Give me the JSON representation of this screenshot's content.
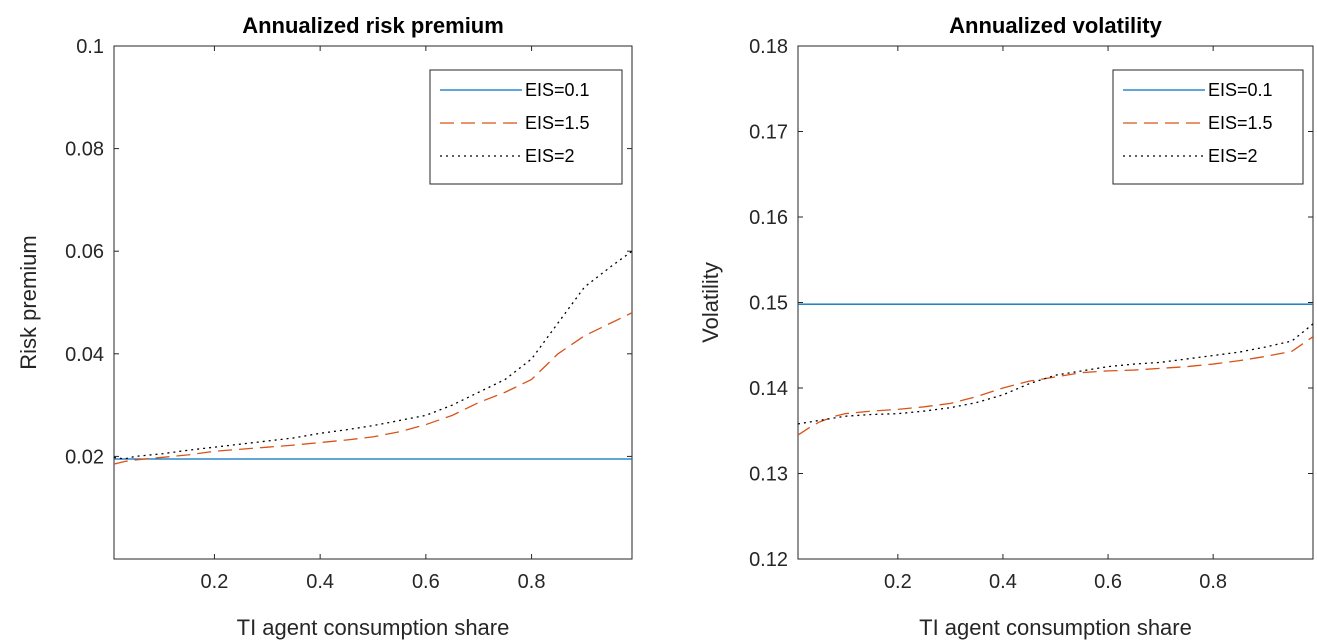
{
  "chart_data": [
    {
      "type": "line",
      "title": "Annualized risk premium",
      "xlabel": "TI agent consumption share",
      "ylabel": "Risk premium",
      "xlim": [
        0.01,
        0.99
      ],
      "ylim": [
        0,
        0.1
      ],
      "xticks": [
        0.2,
        0.4,
        0.6,
        0.8
      ],
      "xtick_labels": [
        "0.2",
        "0.4",
        "0.6",
        "0.8"
      ],
      "yticks": [
        0.02,
        0.04,
        0.06,
        0.08,
        0.1
      ],
      "ytick_labels": [
        "0.02",
        "0.04",
        "0.06",
        "0.08",
        "0.1"
      ],
      "legend_position": "top-right",
      "grid": false,
      "series": [
        {
          "name": "EIS=0.1",
          "color": "#0072BD",
          "style": "solid",
          "x": [
            0.01,
            0.1,
            0.2,
            0.3,
            0.4,
            0.5,
            0.6,
            0.7,
            0.8,
            0.9,
            0.99
          ],
          "y": [
            0.0195,
            0.0195,
            0.0195,
            0.0195,
            0.0195,
            0.0195,
            0.0195,
            0.0195,
            0.0195,
            0.0195,
            0.0195
          ]
        },
        {
          "name": "EIS=1.5",
          "color": "#D95319",
          "style": "dashed",
          "x": [
            0.01,
            0.03,
            0.05,
            0.1,
            0.15,
            0.2,
            0.25,
            0.3,
            0.35,
            0.4,
            0.45,
            0.5,
            0.55,
            0.6,
            0.65,
            0.7,
            0.75,
            0.8,
            0.85,
            0.9,
            0.95,
            0.99
          ],
          "y": [
            0.0185,
            0.019,
            0.0193,
            0.0198,
            0.0203,
            0.021,
            0.0214,
            0.0218,
            0.0222,
            0.0227,
            0.0232,
            0.0238,
            0.0248,
            0.0262,
            0.028,
            0.0305,
            0.0325,
            0.035,
            0.04,
            0.0435,
            0.046,
            0.048
          ]
        },
        {
          "name": "EIS=2",
          "color": "#000000",
          "style": "dotted",
          "x": [
            0.01,
            0.03,
            0.05,
            0.1,
            0.15,
            0.2,
            0.25,
            0.3,
            0.35,
            0.4,
            0.45,
            0.5,
            0.55,
            0.6,
            0.65,
            0.7,
            0.75,
            0.8,
            0.85,
            0.9,
            0.95,
            0.99
          ],
          "y": [
            0.0198,
            0.0195,
            0.02,
            0.0205,
            0.0212,
            0.0218,
            0.0224,
            0.023,
            0.0236,
            0.0245,
            0.0252,
            0.026,
            0.027,
            0.028,
            0.03,
            0.0325,
            0.035,
            0.039,
            0.046,
            0.053,
            0.057,
            0.06
          ]
        }
      ]
    },
    {
      "type": "line",
      "title": "Annualized volatility",
      "xlabel": "TI agent consumption share",
      "ylabel": "Volatility",
      "xlim": [
        0.01,
        0.99
      ],
      "ylim": [
        0.12,
        0.18
      ],
      "xticks": [
        0.2,
        0.4,
        0.6,
        0.8
      ],
      "xtick_labels": [
        "0.2",
        "0.4",
        "0.6",
        "0.8"
      ],
      "yticks": [
        0.12,
        0.13,
        0.14,
        0.15,
        0.16,
        0.17,
        0.18
      ],
      "ytick_labels": [
        "0.12",
        "0.13",
        "0.14",
        "0.15",
        "0.16",
        "0.17",
        "0.18"
      ],
      "legend_position": "top-right",
      "grid": false,
      "series": [
        {
          "name": "EIS=0.1",
          "color": "#0072BD",
          "style": "solid",
          "x": [
            0.01,
            0.1,
            0.2,
            0.3,
            0.4,
            0.5,
            0.6,
            0.7,
            0.8,
            0.9,
            0.99
          ],
          "y": [
            0.1498,
            0.1498,
            0.1498,
            0.1498,
            0.1498,
            0.1498,
            0.1498,
            0.1498,
            0.1498,
            0.1498,
            0.1498
          ]
        },
        {
          "name": "EIS=1.5",
          "color": "#D95319",
          "style": "dashed",
          "x": [
            0.01,
            0.03,
            0.05,
            0.08,
            0.1,
            0.15,
            0.2,
            0.25,
            0.3,
            0.35,
            0.4,
            0.45,
            0.5,
            0.55,
            0.6,
            0.65,
            0.7,
            0.75,
            0.8,
            0.85,
            0.9,
            0.95,
            0.99
          ],
          "y": [
            0.1345,
            0.1353,
            0.136,
            0.1367,
            0.137,
            0.1373,
            0.1375,
            0.1378,
            0.1382,
            0.139,
            0.14,
            0.1408,
            0.1413,
            0.1418,
            0.142,
            0.1421,
            0.1423,
            0.1425,
            0.1428,
            0.1432,
            0.1437,
            0.1443,
            0.146
          ]
        },
        {
          "name": "EIS=2",
          "color": "#000000",
          "style": "dotted",
          "x": [
            0.01,
            0.03,
            0.05,
            0.08,
            0.1,
            0.15,
            0.2,
            0.25,
            0.3,
            0.35,
            0.4,
            0.45,
            0.5,
            0.55,
            0.6,
            0.65,
            0.7,
            0.75,
            0.8,
            0.85,
            0.9,
            0.95,
            0.99
          ],
          "y": [
            0.1358,
            0.136,
            0.1362,
            0.1365,
            0.1367,
            0.1369,
            0.137,
            0.1373,
            0.1377,
            0.1383,
            0.1392,
            0.1405,
            0.1415,
            0.142,
            0.1425,
            0.1428,
            0.143,
            0.1434,
            0.1438,
            0.1442,
            0.1448,
            0.1455,
            0.1475
          ]
        }
      ]
    }
  ]
}
